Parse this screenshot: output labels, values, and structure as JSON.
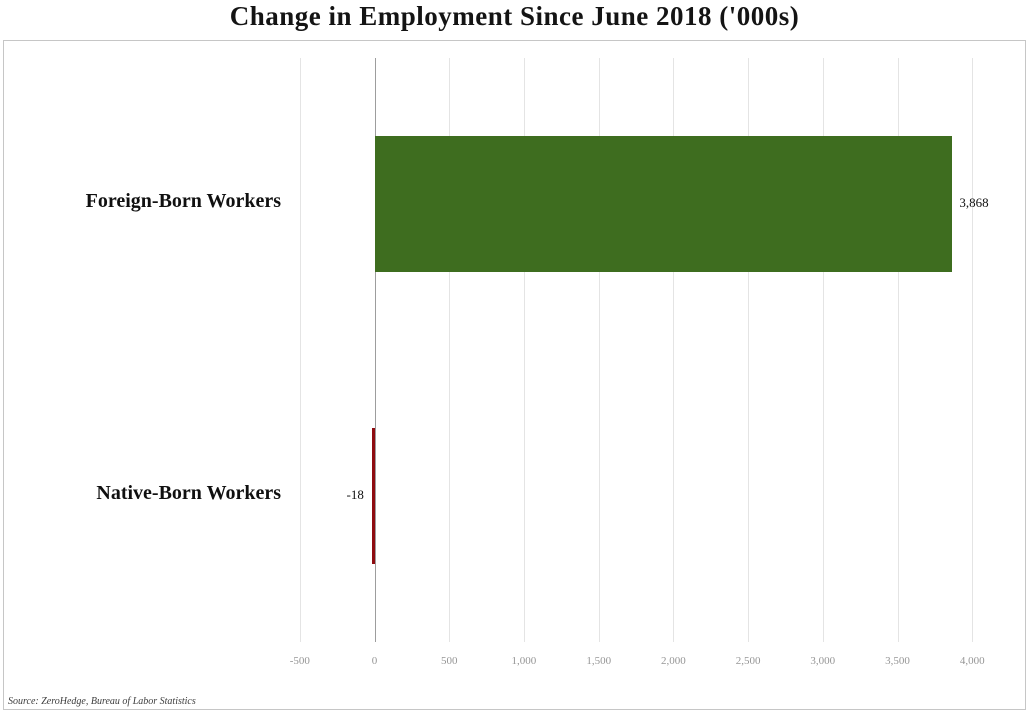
{
  "title": "Change in Employment Since June 2018 ('000s)",
  "source": "Source: ZeroHedge, Bureau of Labor Statistics",
  "chart_data": {
    "type": "bar",
    "orientation": "horizontal",
    "title": "Change in Employment Since June 2018 ('000s)",
    "categories": [
      "Foreign-Born Workers",
      "Native-Born Workers"
    ],
    "values": [
      3868,
      -18
    ],
    "value_labels": [
      "3,868",
      "-18"
    ],
    "bar_colors": [
      "#3e6d1f",
      "#8e0b10"
    ],
    "xlim": [
      -760,
      4347
    ],
    "x_ticks": [
      -500,
      0,
      500,
      1000,
      1500,
      2000,
      2500,
      3000,
      3500,
      4000
    ],
    "x_tick_labels": [
      "-500",
      "0",
      "500",
      "1,000",
      "1,500",
      "2,000",
      "2,500",
      "3,000",
      "3,500",
      "4,000"
    ],
    "grid": true,
    "legend": false,
    "ylabel": "",
    "xlabel": ""
  },
  "colors": {
    "positive_bar": "#3e6d1f",
    "negative_bar": "#8e0b10",
    "gridline": "#e4e4e4",
    "zero_line": "#9d9d9d",
    "tick_label": "#969696",
    "border": "#c6c6c6"
  }
}
